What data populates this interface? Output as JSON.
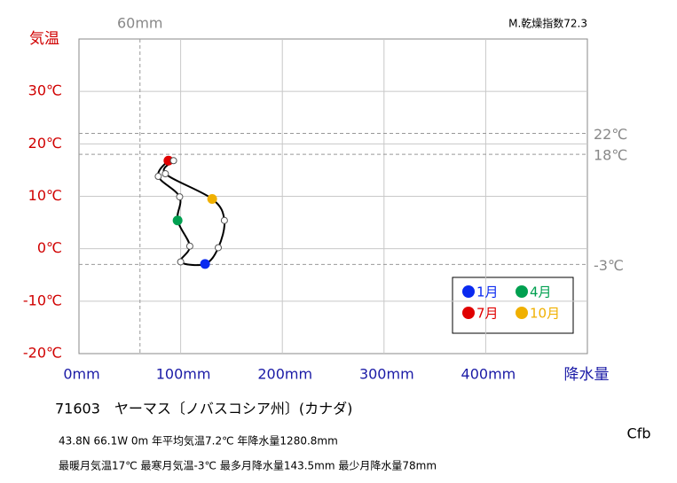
{
  "chart_data": {
    "type": "climograph",
    "y_label": "気温",
    "x_label": "降水量",
    "index_label": "M.乾燥指数72.3",
    "station": "71603　ヤーマス〔ノバスコシア州〕(カナダ)",
    "info_lines": [
      "43.8N  66.1W 0m  年平均気温7.2℃ 年降水量1280.8mm",
      "最暖月気温17℃ 最寒月気温-3℃ 最多月降水量143.5mm 最少月降水量78mm"
    ],
    "climate_code": "Cfb",
    "xlim": [
      0,
      500
    ],
    "ylim": [
      -20,
      40
    ],
    "xticks": [
      {
        "value": 0,
        "label": "0mm"
      },
      {
        "value": 100,
        "label": "100mm"
      },
      {
        "value": 200,
        "label": "200mm"
      },
      {
        "value": 300,
        "label": "300mm"
      },
      {
        "value": 400,
        "label": "400mm"
      }
    ],
    "yticks": [
      {
        "value": -20,
        "label": "-20℃"
      },
      {
        "value": -10,
        "label": "-10℃"
      },
      {
        "value": 0,
        "label": "0℃"
      },
      {
        "value": 10,
        "label": "10℃"
      },
      {
        "value": 20,
        "label": "20℃"
      },
      {
        "value": 30,
        "label": "30℃"
      }
    ],
    "y_refs": [
      {
        "value": 22,
        "label": "22℃"
      },
      {
        "value": 18,
        "label": "18℃"
      },
      {
        "value": -3,
        "label": "-3℃"
      }
    ],
    "x_refs": [
      {
        "value": 60,
        "label": "60mm"
      }
    ],
    "grid": true,
    "series": [
      {
        "x": [
          124,
          100,
          109,
          97,
          99,
          78,
          88,
          93,
          85,
          131,
          143,
          137
        ],
        "values": [
          -2.9,
          -2.5,
          0.5,
          5.4,
          9.9,
          13.8,
          16.8,
          16.8,
          14.3,
          9.5,
          5.4,
          0.2
        ]
      }
    ],
    "highlights": [
      {
        "index": 0,
        "label": "1月",
        "color": "#0a2af0"
      },
      {
        "index": 3,
        "label": "4月",
        "color": "#00a050"
      },
      {
        "index": 6,
        "label": "7月",
        "color": "#e00000"
      },
      {
        "index": 9,
        "label": "10月",
        "color": "#f0b000"
      }
    ]
  }
}
